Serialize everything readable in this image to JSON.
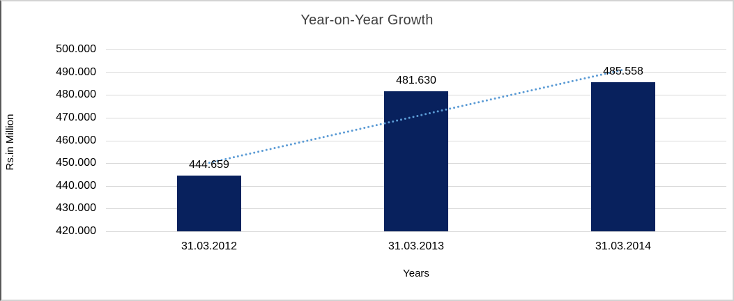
{
  "chart_data": {
    "type": "bar",
    "title": "Year-on-Year Growth",
    "xlabel": "Years",
    "ylabel": "Rs.in Million",
    "categories": [
      "31.03.2012",
      "31.03.2013",
      "31.03.2014"
    ],
    "values": [
      444.659,
      481.63,
      485.558
    ],
    "data_labels": [
      "444.659",
      "481.630",
      "485.558"
    ],
    "ylim": [
      420,
      500
    ],
    "ytick_step": 10,
    "ytick_labels": [
      "500.000",
      "490.000",
      "480.000",
      "470.000",
      "460.000",
      "450.000",
      "440.000",
      "430.000",
      "420.000"
    ],
    "grid": true,
    "legend": false,
    "trendline": {
      "type": "linear",
      "style": "dotted"
    },
    "colors": {
      "bar": "#08215d",
      "trendline": "#5b9bd5",
      "gridline": "#d9d9d9",
      "text": "#000000",
      "border": "#d3d3d3"
    }
  }
}
